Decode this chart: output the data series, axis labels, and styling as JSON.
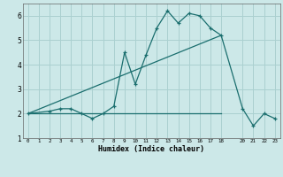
{
  "xlabel": "Humidex (Indice chaleur)",
  "bg_color": "#cce8e8",
  "grid_color": "#aad0d0",
  "line_color": "#1a6e6e",
  "xlim": [
    -0.5,
    23.5
  ],
  "ylim": [
    1.0,
    6.5
  ],
  "xticks": [
    0,
    1,
    2,
    3,
    4,
    5,
    6,
    7,
    8,
    9,
    10,
    11,
    12,
    13,
    14,
    15,
    16,
    17,
    18,
    20,
    21,
    22,
    23
  ],
  "yticks": [
    1,
    2,
    3,
    4,
    5,
    6
  ],
  "line1_x": [
    0,
    2,
    3,
    4,
    5,
    6,
    7,
    8,
    9,
    10,
    11,
    12,
    13,
    14,
    15,
    16,
    17,
    18,
    20,
    21,
    22,
    23
  ],
  "line1_y": [
    2.0,
    2.1,
    2.2,
    2.2,
    2.0,
    1.8,
    2.0,
    2.3,
    4.5,
    3.2,
    4.4,
    5.5,
    6.2,
    5.7,
    6.1,
    6.0,
    5.5,
    5.2,
    2.2,
    1.5,
    2.0,
    1.8
  ],
  "line2_x": [
    0,
    18
  ],
  "line2_y": [
    2.0,
    2.0
  ],
  "line3_x": [
    0,
    18
  ],
  "line3_y": [
    2.0,
    5.2
  ]
}
